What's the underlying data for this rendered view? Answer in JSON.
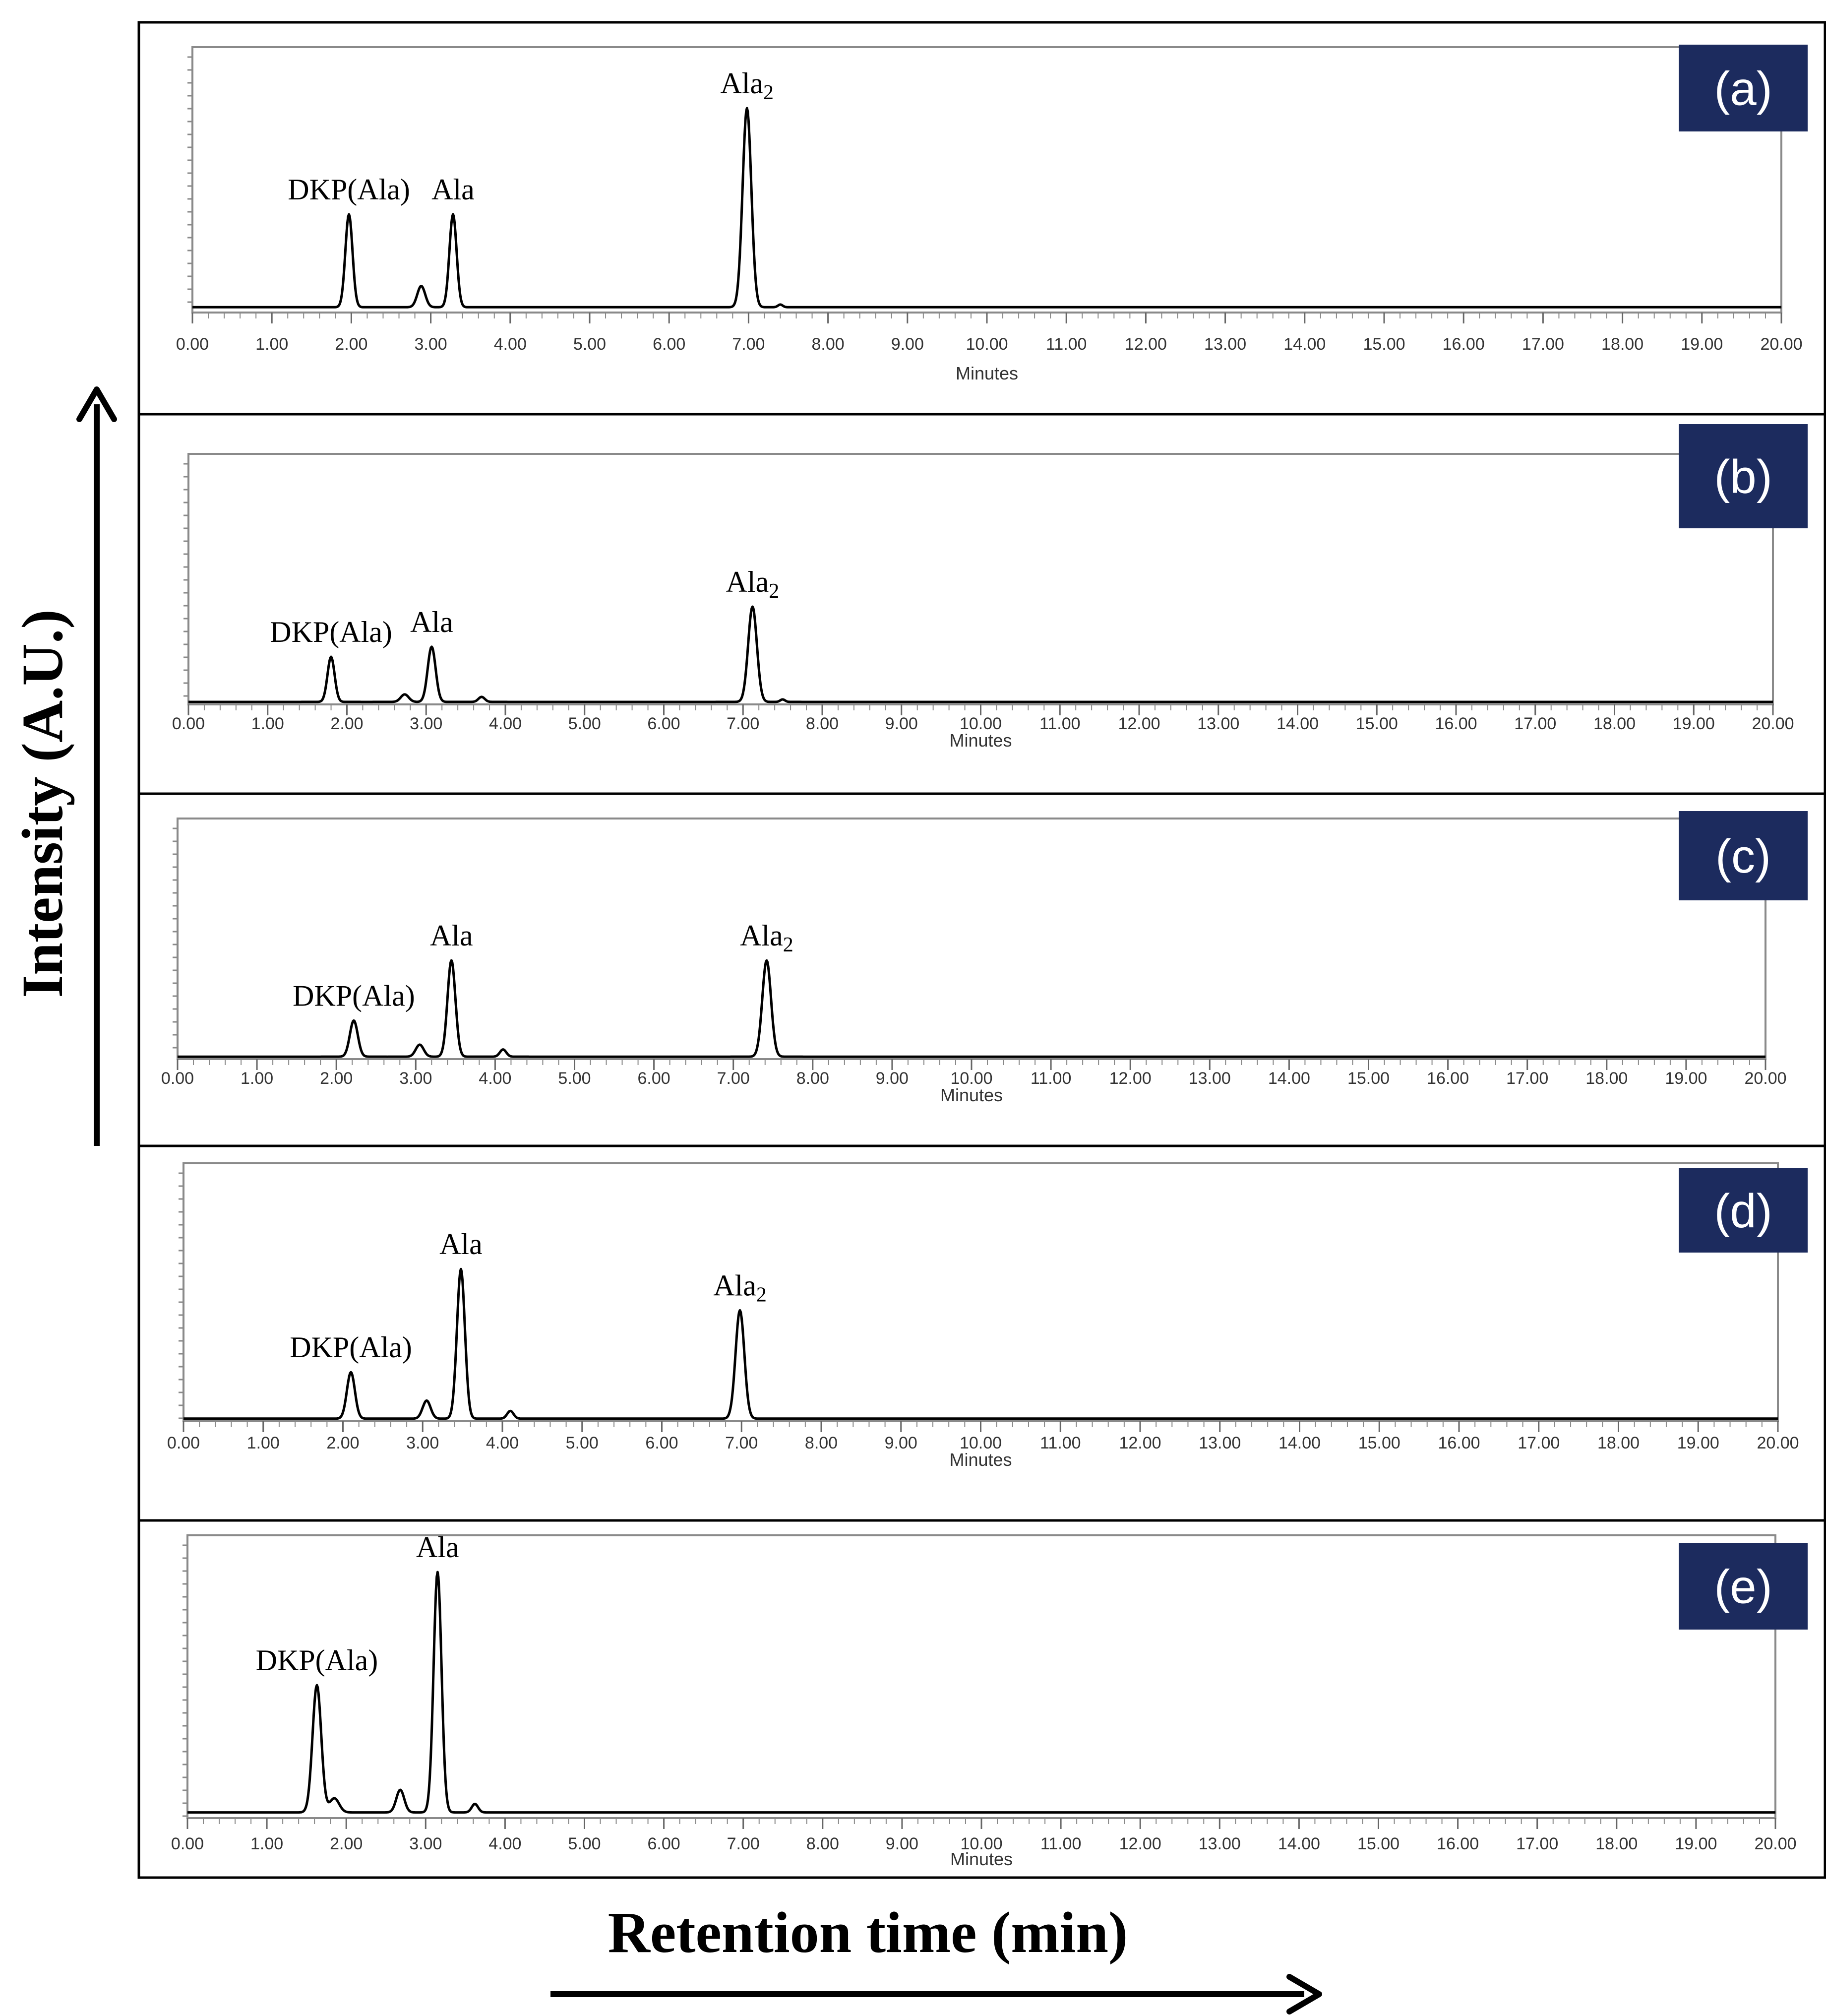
{
  "figure": {
    "ylabel": "Intensity (A.U.)",
    "xlabel": "Retention time (min)"
  },
  "chart_data": [
    {
      "type": "line",
      "panel": "(a)",
      "xunit": "Minutes",
      "xlim": [
        0,
        20
      ],
      "x_ticks": [
        "0.00",
        "1.00",
        "2.00",
        "3.00",
        "4.00",
        "5.00",
        "6.00",
        "7.00",
        "8.00",
        "9.00",
        "10.00",
        "11.00",
        "12.00",
        "13.00",
        "14.00",
        "15.00",
        "16.00",
        "17.00",
        "18.00",
        "19.00",
        "20.00"
      ],
      "baseline": 0.02,
      "peaks": [
        {
          "t": 1.97,
          "h": 0.35,
          "w": 0.045
        },
        {
          "t": 2.88,
          "h": 0.08,
          "w": 0.05
        },
        {
          "t": 3.28,
          "h": 0.35,
          "w": 0.045
        },
        {
          "t": 6.98,
          "h": 0.75,
          "w": 0.055
        },
        {
          "t": 7.4,
          "h": 0.01,
          "w": 0.03
        }
      ],
      "labels": [
        {
          "text": "DKP(Ala)",
          "t": 1.97
        },
        {
          "text": "Ala",
          "t": 3.28
        },
        {
          "text": "Ala",
          "sub": "2",
          "t": 6.98
        }
      ]
    },
    {
      "type": "line",
      "panel": "(b)",
      "xunit": "Minutes",
      "xlim": [
        0,
        20
      ],
      "x_ticks": [
        "0.00",
        "1.00",
        "2.00",
        "3.00",
        "4.00",
        "5.00",
        "6.00",
        "7.00",
        "8.00",
        "9.00",
        "10.00",
        "11.00",
        "12.00",
        "13.00",
        "14.00",
        "15.00",
        "16.00",
        "17.00",
        "18.00",
        "19.00",
        "20.00"
      ],
      "baseline": 0.01,
      "peaks": [
        {
          "t": 1.8,
          "h": 0.18,
          "w": 0.045
        },
        {
          "t": 2.73,
          "h": 0.03,
          "w": 0.05
        },
        {
          "t": 3.07,
          "h": 0.22,
          "w": 0.05
        },
        {
          "t": 3.7,
          "h": 0.02,
          "w": 0.04
        },
        {
          "t": 7.12,
          "h": 0.38,
          "w": 0.055
        },
        {
          "t": 7.5,
          "h": 0.01,
          "w": 0.03
        }
      ],
      "labels": [
        {
          "text": "DKP(Ala)",
          "t": 1.8
        },
        {
          "text": "Ala",
          "t": 3.07
        },
        {
          "text": "Ala",
          "sub": "2",
          "t": 7.12
        }
      ]
    },
    {
      "type": "line",
      "panel": "(c)",
      "xunit": "Minutes",
      "xlim": [
        0,
        20
      ],
      "x_ticks": [
        "0.00",
        "1.00",
        "2.00",
        "3.00",
        "4.00",
        "5.00",
        "6.00",
        "7.00",
        "8.00",
        "9.00",
        "10.00",
        "11.00",
        "12.00",
        "13.00",
        "14.00",
        "15.00",
        "16.00",
        "17.00",
        "18.00",
        "19.00",
        "20.00"
      ],
      "baseline": 0.01,
      "peaks": [
        {
          "t": 2.22,
          "h": 0.15,
          "w": 0.05
        },
        {
          "t": 3.05,
          "h": 0.05,
          "w": 0.05
        },
        {
          "t": 3.45,
          "h": 0.4,
          "w": 0.05
        },
        {
          "t": 4.1,
          "h": 0.03,
          "w": 0.04
        },
        {
          "t": 7.42,
          "h": 0.4,
          "w": 0.055
        }
      ],
      "labels": [
        {
          "text": "DKP(Ala)",
          "t": 2.22
        },
        {
          "text": "Ala",
          "t": 3.45
        },
        {
          "text": "Ala",
          "sub": "2",
          "t": 7.42
        }
      ]
    },
    {
      "type": "line",
      "panel": "(d)",
      "xunit": "Minutes",
      "xlim": [
        0,
        20
      ],
      "x_ticks": [
        "0.00",
        "1.00",
        "2.00",
        "3.00",
        "4.00",
        "5.00",
        "6.00",
        "7.00",
        "8.00",
        "9.00",
        "10.00",
        "11.00",
        "12.00",
        "13.00",
        "14.00",
        "15.00",
        "16.00",
        "17.00",
        "18.00",
        "19.00",
        "20.00"
      ],
      "baseline": 0.01,
      "peaks": [
        {
          "t": 2.1,
          "h": 0.18,
          "w": 0.05
        },
        {
          "t": 3.05,
          "h": 0.07,
          "w": 0.05
        },
        {
          "t": 3.48,
          "h": 0.58,
          "w": 0.05
        },
        {
          "t": 4.1,
          "h": 0.03,
          "w": 0.04
        },
        {
          "t": 6.98,
          "h": 0.42,
          "w": 0.055
        }
      ],
      "labels": [
        {
          "text": "DKP(Ala)",
          "t": 2.1
        },
        {
          "text": "Ala",
          "t": 3.48
        },
        {
          "text": "Ala",
          "sub": "2",
          "t": 6.98
        }
      ]
    },
    {
      "type": "line",
      "panel": "(e)",
      "xunit": "Minutes",
      "xlim": [
        0,
        20
      ],
      "x_ticks": [
        "0.00",
        "1.00",
        "2.00",
        "3.00",
        "4.00",
        "5.00",
        "6.00",
        "7.00",
        "8.00",
        "9.00",
        "10.00",
        "11.00",
        "12.00",
        "13.00",
        "14.00",
        "15.00",
        "16.00",
        "17.00",
        "18.00",
        "19.00",
        "20.00"
      ],
      "baseline": 0.02,
      "peaks": [
        {
          "t": 1.63,
          "h": 0.45,
          "w": 0.055
        },
        {
          "t": 1.85,
          "h": 0.05,
          "w": 0.06
        },
        {
          "t": 2.68,
          "h": 0.08,
          "w": 0.05
        },
        {
          "t": 3.15,
          "h": 0.85,
          "w": 0.05
        },
        {
          "t": 3.62,
          "h": 0.03,
          "w": 0.04
        }
      ],
      "labels": [
        {
          "text": "DKP(Ala)",
          "t": 1.63
        },
        {
          "text": "Ala",
          "t": 3.15
        }
      ]
    }
  ]
}
